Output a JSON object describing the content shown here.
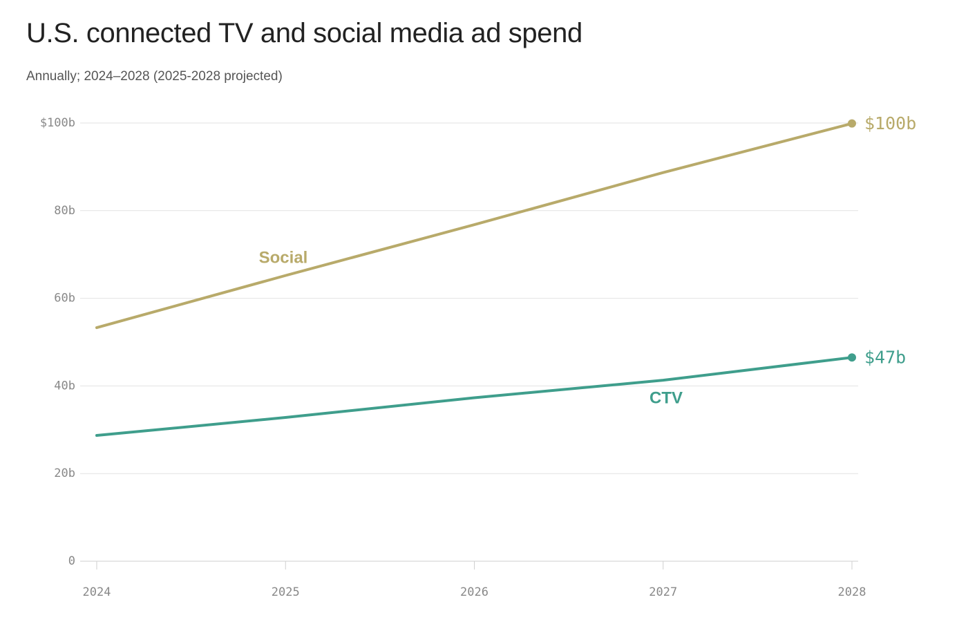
{
  "chart_data": {
    "type": "line",
    "title": "U.S. connected TV and social media ad spend",
    "subtitle": "Annually; 2024–2028 (2025-2028 projected)",
    "x": [
      2024,
      2025,
      2026,
      2027,
      2028
    ],
    "x_tick_labels": [
      "2024",
      "2025",
      "2026",
      "2027",
      "2028"
    ],
    "y_ticks": [
      0,
      20,
      40,
      60,
      80,
      100
    ],
    "y_tick_labels": [
      "0",
      "20b",
      "40b",
      "60b",
      "80b",
      "$100b"
    ],
    "ylim": [
      0,
      100
    ],
    "grid": true,
    "series": [
      {
        "name": "Social",
        "values": [
          53.3,
          65.2,
          76.8,
          88.7,
          99.9
        ],
        "color": "#b8aa6a",
        "end_label": "$100b"
      },
      {
        "name": "CTV",
        "values": [
          28.7,
          32.8,
          37.3,
          41.3,
          46.5
        ],
        "color": "#3f9e8c",
        "end_label": "$47b"
      }
    ]
  }
}
